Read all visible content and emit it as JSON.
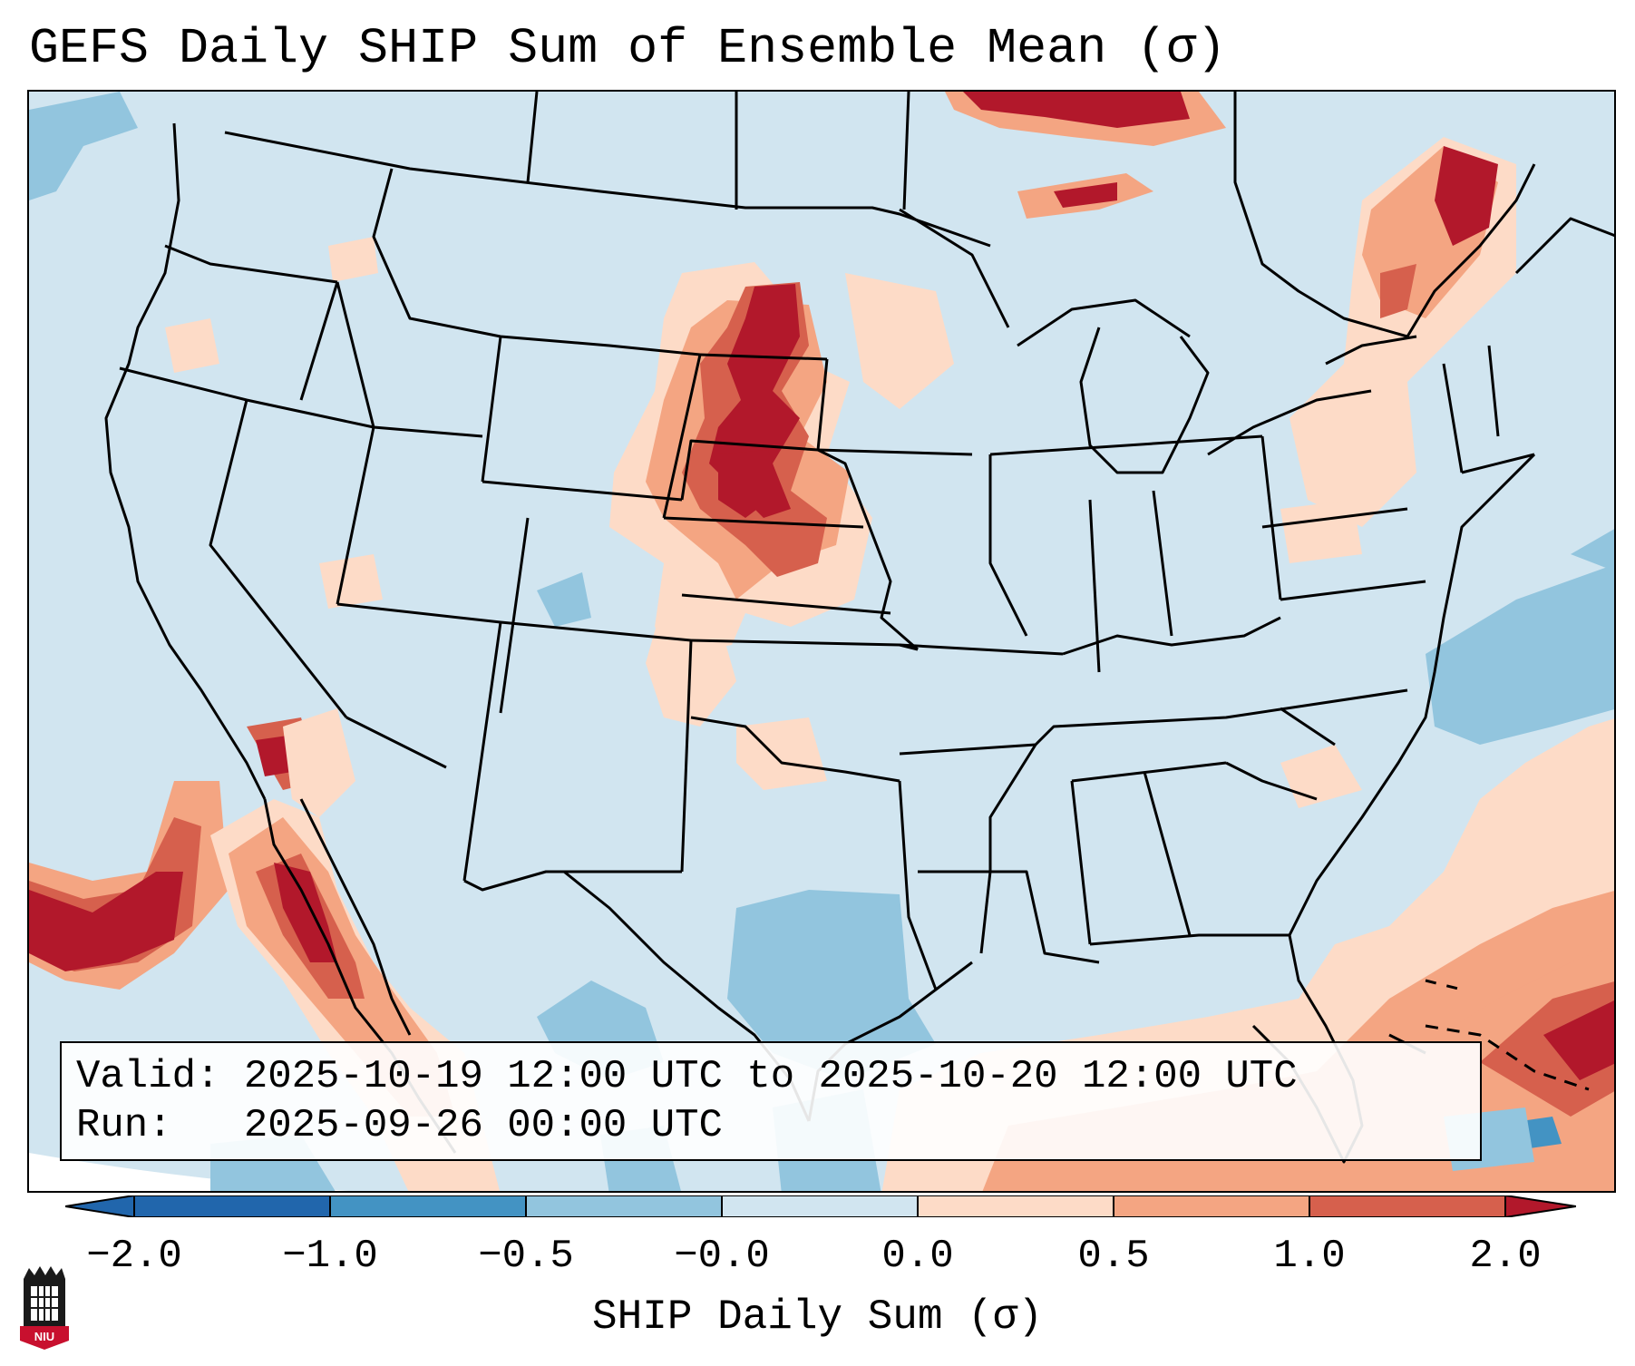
{
  "title": "GEFS Daily SHIP Sum of Ensemble Mean (σ)",
  "info": {
    "valid_line": "Valid: 2025-10-19 12:00 UTC to 2025-10-20 12:00 UTC",
    "run_line": "Run:   2025-09-26 00:00 UTC"
  },
  "colorbar": {
    "label": "SHIP Daily Sum (σ)",
    "ticks": [
      "−2.0",
      "−1.0",
      "−0.5",
      "−0.0",
      "0.0",
      "0.5",
      "1.0",
      "2.0"
    ],
    "colors": [
      "#2166ac",
      "#4393c3",
      "#92c5de",
      "#d1e5f0",
      "#fddbc7",
      "#f4a582",
      "#d6604d",
      "#b2182b"
    ],
    "extend": "both"
  },
  "map": {
    "region": "Contiguous United States",
    "background_color": "#d1e5f0",
    "features": [
      "state borders",
      "coastlines",
      "lakes"
    ],
    "notable_anomalies": [
      {
        "area": "Northern Plains (ND/SD/NE)",
        "class": "strong positive"
      },
      {
        "area": "Southeast Canada / New England",
        "class": "positive"
      },
      {
        "area": "Eastern Pacific off Baja",
        "class": "strong positive"
      },
      {
        "area": "Gulf of Mexico / Caribbean",
        "class": "positive"
      },
      {
        "area": "South Texas",
        "class": "negative"
      },
      {
        "area": "Western Atlantic",
        "class": "negative"
      }
    ]
  },
  "logo": {
    "text": "NIU"
  }
}
